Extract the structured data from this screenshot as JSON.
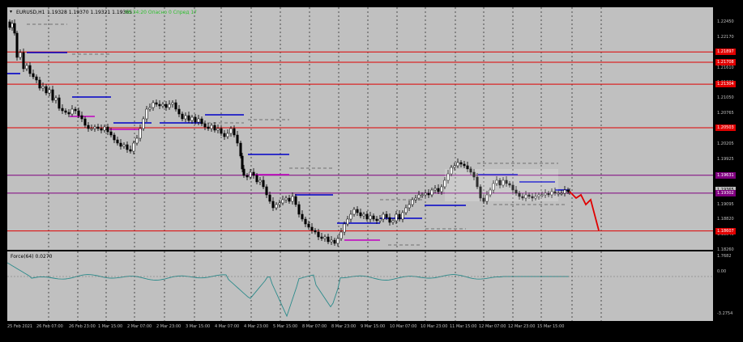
{
  "header": {
    "symbol_timeframe": "EURUSD,H1",
    "ohlc": "1.19328 1.19370 1.19321 1.19365",
    "timer": "06:34:20 Опасно 0 Спред 17"
  },
  "indicator": {
    "label": "Force(64) 0.0270"
  },
  "price_axis": {
    "ticks": [
      "1.22450",
      "1.22170",
      "1.21890",
      "1.21610",
      "1.21330",
      "1.21050",
      "1.20765",
      "1.20485",
      "1.20205",
      "1.19925",
      "1.19645",
      "1.19365",
      "1.19095",
      "1.18820",
      "1.18540",
      "1.18260"
    ],
    "tags": [
      {
        "text": "1.21897",
        "color": "#e00000"
      },
      {
        "text": "1.21708",
        "color": "#e00000"
      },
      {
        "text": "1.21304",
        "color": "#e00000"
      },
      {
        "text": "1.20503",
        "color": "#e00000"
      },
      {
        "text": "1.19631",
        "color": "#800080"
      },
      {
        "text": "1.19365",
        "color": "#c0c0c0"
      },
      {
        "text": "1.19302",
        "color": "#800080"
      },
      {
        "text": "1.18607",
        "color": "#e00000"
      }
    ]
  },
  "indicator_axis": {
    "ticks": [
      "1.7682",
      "0.00",
      "-3.2754"
    ]
  },
  "time_axis": {
    "labels": [
      "25 Feb 2021",
      "26 Feb 07:00",
      "26 Feb 23:00",
      "1 Mar 15:00",
      "2 Mar 07:00",
      "2 Mar 23:00",
      "3 Mar 15:00",
      "4 Mar 07:00",
      "4 Mar 23:00",
      "5 Mar 15:00",
      "8 Mar 07:00",
      "8 Mar 23:00",
      "9 Mar 15:00",
      "10 Mar 07:00",
      "10 Mar 23:00",
      "11 Mar 15:00",
      "12 Mar 07:00",
      "12 Mar 23:00",
      "15 Mar 15:00"
    ]
  },
  "colors": {
    "background": "#000000",
    "plot_background": "#c0c0c0",
    "candle": "#000000",
    "support_resistance": "#e00000",
    "level_purple": "#800080",
    "level_blue": "#0000c8",
    "forecast": "#e00000",
    "indicator_line": "#2a8a8a"
  }
}
